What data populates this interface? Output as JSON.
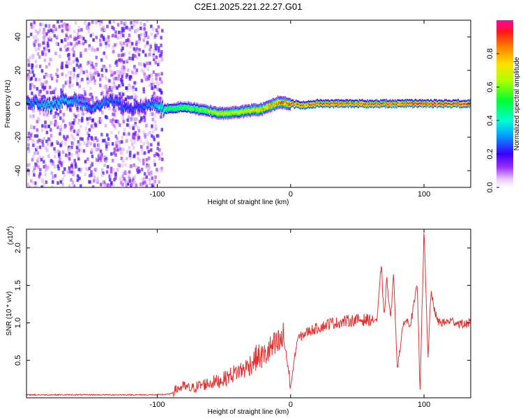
{
  "title": "C2E1.2025.221.22.27.G01",
  "chart_data": [
    {
      "type": "heatmap",
      "xlabel": "Height of straight line (km)",
      "ylabel": "Frequency (Hz)",
      "xlim": [
        -198,
        135
      ],
      "ylim": [
        -50,
        50
      ],
      "x_ticks": [
        -100,
        0,
        100
      ],
      "x_tick_labels": [
        "-100",
        "0",
        "100"
      ],
      "y_ticks": [
        -40,
        -20,
        0,
        20,
        40
      ],
      "y_tick_labels": [
        "-40",
        "-20",
        "0",
        "20",
        "40"
      ],
      "colorbar": {
        "label": "Normalized spectral amplitude",
        "range": [
          0,
          1
        ],
        "ticks": [
          0.0,
          0.2,
          0.4,
          0.6,
          0.8
        ],
        "tick_labels": [
          "0.0",
          "0.2",
          "0.4",
          "0.6",
          "0.8"
        ]
      },
      "ridge": {
        "x": [
          -195,
          -180,
          -165,
          -150,
          -135,
          -120,
          -105,
          -95,
          -80,
          -65,
          -50,
          -40,
          -30,
          -20,
          -10,
          0,
          10,
          20,
          40,
          60,
          80,
          100,
          110,
          135
        ],
        "frequency": [
          1,
          -1,
          3,
          -2,
          2,
          -3,
          0,
          -3,
          -2,
          -4,
          -6,
          -5,
          -4,
          -3,
          1,
          0,
          -1,
          0,
          0,
          0,
          0,
          0,
          0,
          0
        ],
        "peak_amplitude": [
          0.3,
          0.4,
          0.35,
          0.3,
          0.3,
          0.25,
          0.3,
          0.5,
          0.55,
          0.6,
          0.7,
          0.7,
          0.75,
          0.8,
          0.85,
          0.9,
          0.9,
          0.9,
          0.9,
          0.92,
          0.92,
          0.95,
          0.95,
          0.95
        ]
      },
      "grid": false
    },
    {
      "type": "line",
      "xlabel": "Height of straight line (km)",
      "ylabel": "SNR (10 * v/v)",
      "exponent_label": "(x10",
      "exponent_power": "4",
      "exponent_close": ")",
      "xlim": [
        -198,
        135
      ],
      "ylim": [
        0,
        2.25
      ],
      "x_ticks": [
        -100,
        0,
        100
      ],
      "x_tick_labels": [
        "-100",
        "0",
        "100"
      ],
      "y_ticks": [
        0.5,
        1.0,
        1.5,
        2.0
      ],
      "y_tick_labels": [
        "0.5",
        "1.0",
        "1.5",
        "2.0"
      ],
      "series": [
        {
          "color": "#e8312f",
          "x": [
            -198,
            -150,
            -100,
            -90,
            -85,
            -80,
            -75,
            -70,
            -65,
            -60,
            -55,
            -50,
            -45,
            -40,
            -35,
            -30,
            -25,
            -20,
            -15,
            -10,
            -5,
            0,
            5,
            10,
            15,
            20,
            25,
            30,
            35,
            40,
            45,
            50,
            55,
            60,
            65,
            68,
            70,
            72,
            75,
            77,
            80,
            85,
            90,
            95,
            97,
            100,
            103,
            105,
            110,
            115,
            120,
            125,
            130,
            135
          ],
          "values": [
            0.04,
            0.04,
            0.04,
            0.05,
            0.12,
            0.15,
            0.12,
            0.15,
            0.18,
            0.2,
            0.22,
            0.25,
            0.3,
            0.35,
            0.38,
            0.45,
            0.55,
            0.55,
            0.65,
            0.7,
            0.8,
            0.15,
            0.78,
            0.85,
            0.9,
            0.93,
            0.96,
            1.0,
            1.0,
            1.02,
            1.03,
            1.04,
            1.04,
            1.04,
            1.04,
            1.8,
            1.05,
            1.6,
            1.03,
            1.7,
            0.4,
            1.03,
            1.0,
            1.5,
            0.1,
            2.25,
            0.5,
            1.4,
            1.02,
            1.0,
            1.03,
            1.0,
            0.98,
            1.0
          ]
        }
      ],
      "grid": false
    }
  ]
}
